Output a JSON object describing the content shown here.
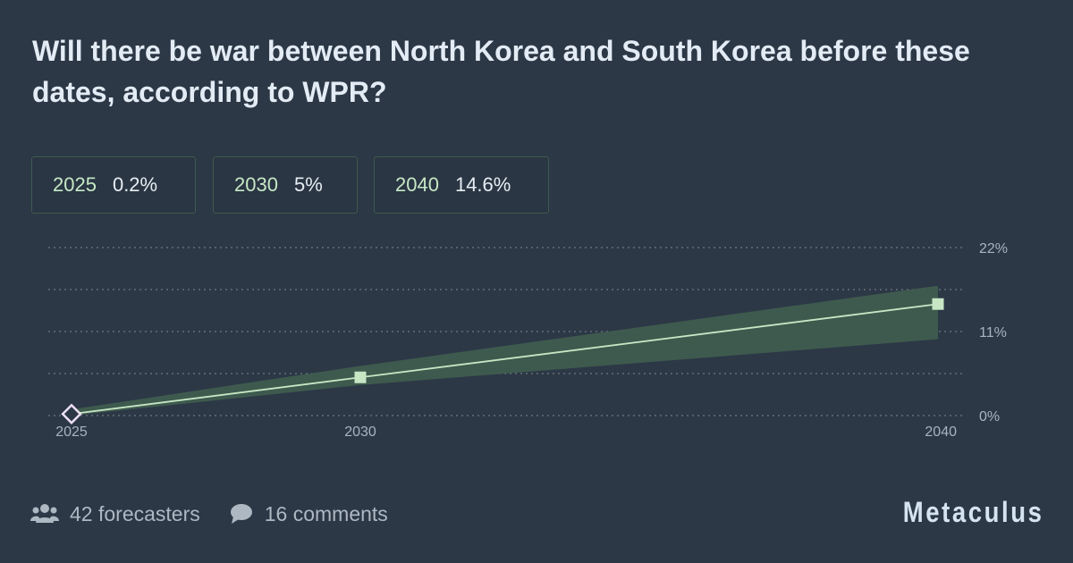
{
  "title": "Will there be war between North Korea and South Korea before these dates, according to WPR?",
  "pills": [
    {
      "label": "2025",
      "value": "0.2%"
    },
    {
      "label": "2030",
      "value": "5%"
    },
    {
      "label": "2040",
      "value": "14.6%"
    }
  ],
  "chart_data": {
    "type": "line",
    "x": [
      2025,
      2030,
      2040
    ],
    "x_tick_labels": [
      "2025",
      "2030",
      "2040"
    ],
    "series": [
      {
        "values": [
          0.2,
          5,
          14.6
        ],
        "lower": [
          0,
          4,
          10
        ],
        "upper": [
          0.8,
          6.5,
          17
        ]
      }
    ],
    "ylim": [
      0,
      22
    ],
    "y_ticks": [
      0,
      5.5,
      11,
      16.5,
      22
    ],
    "y_tick_labels": [
      "0%",
      "",
      "11%",
      "",
      "22%"
    ],
    "grid": true,
    "colors": {
      "line": "#c6e6c4",
      "band": "#3f5c4f",
      "marker": "#c6e6c4",
      "first_marker": "#ece0f2",
      "grid": "#6b7784",
      "tick": "#a9b3be"
    }
  },
  "footer": {
    "forecasters": "42 forecasters",
    "comments": "16 comments"
  },
  "brand": "Metaculus",
  "icons": {
    "forecasters": "users-icon",
    "comments": "comment-icon"
  }
}
